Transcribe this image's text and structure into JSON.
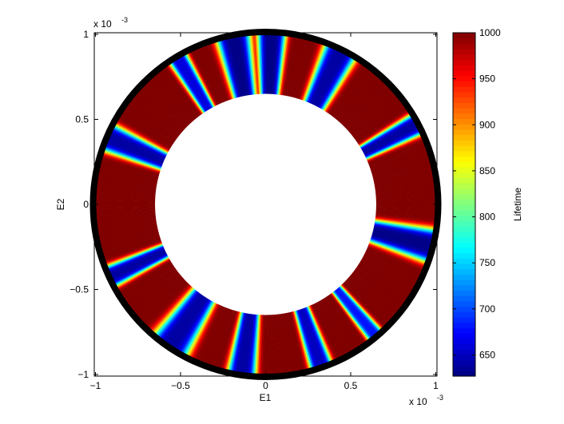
{
  "chart_data": {
    "type": "heatmap",
    "title": "",
    "xlabel": "E1",
    "ylabel": "E2",
    "x_exponent_label": "x 10",
    "x_exponent_power": "-3",
    "y_exponent_label": "x 10",
    "y_exponent_power": "-3",
    "xlim": [
      -1,
      1
    ],
    "ylim": [
      -1,
      1
    ],
    "xticks": [
      -1,
      -0.5,
      0,
      0.5,
      1
    ],
    "xtick_labels": [
      "−1",
      "−0.5",
      "0",
      "0.5",
      "1"
    ],
    "yticks": [
      -1,
      -0.5,
      0,
      0.5,
      1
    ],
    "ytick_labels": [
      "−1",
      "−0.5",
      "0",
      "0.5",
      "1"
    ],
    "grid": false,
    "annulus": {
      "inner_radius": 0.65,
      "outer_radius": 1.0
    },
    "base_value": 1000,
    "dips": [
      {
        "angle_deg": 88,
        "width_deg": 5,
        "min": 630
      },
      {
        "angle_deg": 101,
        "width_deg": 6,
        "min": 630
      },
      {
        "angle_deg": 121,
        "width_deg": 3.5,
        "min": 660
      },
      {
        "angle_deg": 157,
        "width_deg": 5,
        "min": 640
      },
      {
        "angle_deg": 205,
        "width_deg": 4,
        "min": 640
      },
      {
        "angle_deg": 236,
        "width_deg": 7,
        "min": 640
      },
      {
        "angle_deg": 262,
        "width_deg": 5,
        "min": 640
      },
      {
        "angle_deg": 289,
        "width_deg": 4,
        "min": 650
      },
      {
        "angle_deg": 310,
        "width_deg": 3,
        "min": 680
      },
      {
        "angle_deg": 346,
        "width_deg": 6,
        "min": 630
      },
      {
        "angle_deg": 28,
        "width_deg": 4,
        "min": 640
      },
      {
        "angle_deg": 64,
        "width_deg": 6,
        "min": 640
      }
    ],
    "colorbar": {
      "label": "Lifetime",
      "min": 627,
      "max": 1000,
      "ticks": [
        650,
        700,
        750,
        800,
        850,
        900,
        950,
        1000
      ],
      "tick_labels": [
        "650",
        "700",
        "750",
        "800",
        "850",
        "900",
        "950",
        "1000"
      ],
      "colormap": "jet"
    }
  }
}
